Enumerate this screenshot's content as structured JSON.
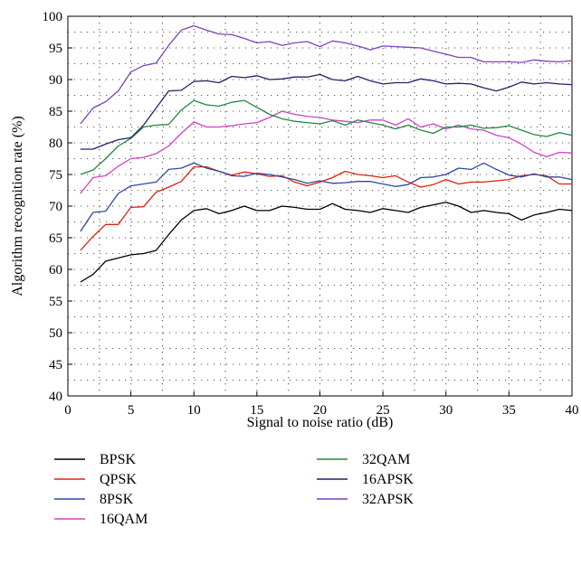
{
  "chart_data": {
    "type": "line",
    "title": "",
    "xlabel": "Signal to noise ratio (dB)",
    "ylabel": "Algorithm recognition rate (%)",
    "xlim": [
      0,
      40
    ],
    "ylim": [
      40,
      100
    ],
    "xticks": [
      0,
      5,
      10,
      15,
      20,
      25,
      30,
      35,
      40
    ],
    "yticks": [
      40,
      45,
      50,
      55,
      60,
      65,
      70,
      75,
      80,
      85,
      90,
      95,
      100
    ],
    "grid": "dotted",
    "legend_position": "bottom",
    "x": [
      1,
      2,
      3,
      4,
      5,
      6,
      7,
      8,
      9,
      10,
      11,
      12,
      13,
      14,
      15,
      16,
      17,
      18,
      19,
      20,
      21,
      22,
      23,
      24,
      25,
      26,
      27,
      28,
      29,
      30,
      31,
      32,
      33,
      34,
      35,
      36,
      37,
      38,
      39,
      40
    ],
    "series": [
      {
        "name": "BPSK",
        "color": "#000000",
        "values": [
          58.0,
          59.2,
          61.3,
          61.8,
          62.3,
          62.5,
          63.0,
          65.5,
          67.8,
          69.3,
          69.6,
          68.8,
          69.3,
          70.0,
          69.3,
          69.3,
          70.0,
          69.8,
          69.5,
          69.5,
          70.4,
          69.5,
          69.3,
          69.0,
          69.6,
          69.3,
          69.0,
          69.8,
          70.2,
          70.6,
          70.0,
          69.0,
          69.3,
          69.0,
          68.8,
          67.8,
          68.6,
          69.0,
          69.5,
          69.3
        ]
      },
      {
        "name": "QPSK",
        "color": "#e02010",
        "values": [
          63.0,
          65.2,
          67.1,
          67.1,
          69.8,
          69.9,
          72.2,
          73.0,
          73.9,
          76.2,
          76.2,
          75.5,
          74.9,
          75.4,
          75.1,
          74.7,
          74.8,
          73.8,
          73.2,
          73.8,
          74.5,
          75.5,
          75.0,
          74.8,
          74.5,
          74.8,
          73.8,
          73.0,
          73.4,
          74.2,
          73.5,
          73.8,
          73.8,
          74.0,
          74.2,
          74.8,
          75.0,
          74.8,
          73.5,
          73.5
        ]
      },
      {
        "name": "8PSK",
        "color": "#2a4aa0",
        "values": [
          66.0,
          69.0,
          69.2,
          72.0,
          73.2,
          73.5,
          73.8,
          75.8,
          76.0,
          76.8,
          76.0,
          75.5,
          74.8,
          74.7,
          75.2,
          75.0,
          74.6,
          74.2,
          73.6,
          74.0,
          73.6,
          73.7,
          73.9,
          73.9,
          73.5,
          73.1,
          73.4,
          74.5,
          74.6,
          75.0,
          76.0,
          75.8,
          76.8,
          75.8,
          74.9,
          74.6,
          75.1,
          74.6,
          74.6,
          74.2
        ]
      },
      {
        "name": "16QAM",
        "color": "#d040c0",
        "values": [
          72.0,
          74.5,
          74.8,
          76.3,
          77.5,
          77.7,
          78.3,
          79.5,
          81.5,
          83.3,
          82.5,
          82.5,
          82.7,
          83.0,
          83.2,
          84.0,
          85.0,
          84.5,
          84.2,
          84.0,
          83.6,
          83.4,
          83.2,
          83.6,
          83.6,
          82.8,
          83.8,
          82.5,
          83.0,
          82.2,
          82.8,
          82.2,
          82.0,
          81.2,
          80.8,
          79.8,
          78.5,
          77.8,
          78.5,
          78.4
        ]
      },
      {
        "name": "32QAM",
        "color": "#208a40",
        "values": [
          75.0,
          75.7,
          77.5,
          79.5,
          80.7,
          82.5,
          82.8,
          82.9,
          85.2,
          86.7,
          86.0,
          85.8,
          86.4,
          86.7,
          85.6,
          84.5,
          83.8,
          83.4,
          83.2,
          83.0,
          83.5,
          82.8,
          83.6,
          83.2,
          82.8,
          82.2,
          82.8,
          82.0,
          81.5,
          82.5,
          82.5,
          82.8,
          82.3,
          82.4,
          82.7,
          82.0,
          81.3,
          81.0,
          81.6,
          81.2
        ]
      },
      {
        "name": "16APSK",
        "color": "#202070",
        "values": [
          79.0,
          79.0,
          79.8,
          80.5,
          80.8,
          82.8,
          85.5,
          88.2,
          88.3,
          89.7,
          89.8,
          89.5,
          90.5,
          90.3,
          90.6,
          90.0,
          90.1,
          90.4,
          90.4,
          90.8,
          90.0,
          89.8,
          90.5,
          89.8,
          89.3,
          89.5,
          89.5,
          90.1,
          89.8,
          89.3,
          89.4,
          89.3,
          88.7,
          88.2,
          88.8,
          89.6,
          89.3,
          89.5,
          89.3,
          89.2
        ]
      },
      {
        "name": "32APSK",
        "color": "#7a44b8",
        "values": [
          83.0,
          85.5,
          86.5,
          88.2,
          91.2,
          92.2,
          92.6,
          95.4,
          97.8,
          98.5,
          97.8,
          97.2,
          97.1,
          96.5,
          95.8,
          96.0,
          95.4,
          95.8,
          96.0,
          95.2,
          96.1,
          95.8,
          95.3,
          94.7,
          95.3,
          95.2,
          95.1,
          95.0,
          94.5,
          94.0,
          93.5,
          93.5,
          92.8,
          92.8,
          92.8,
          92.7,
          93.1,
          92.9,
          92.8,
          93.0
        ]
      }
    ]
  }
}
